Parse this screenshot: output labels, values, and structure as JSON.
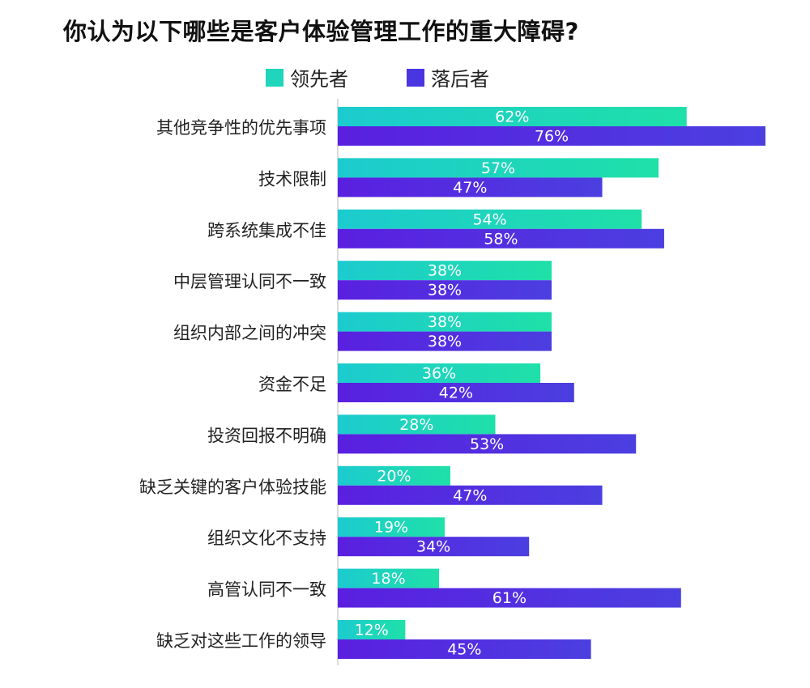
{
  "chart_data": {
    "type": "bar",
    "orientation": "horizontal",
    "title": "你认为以下哪些是客户体验管理工作的重大障碍?",
    "categories": [
      "其他竞争性的优先事项",
      "技术限制",
      "跨系统集成不佳",
      "中层管理认同不一致",
      "组织内部之间的冲突",
      "资金不足",
      "投资回报不明确",
      "缺乏关键的客户体验技能",
      "组织文化不支持",
      "高管认同不一致",
      "缺乏对这些工作的领导"
    ],
    "series": [
      {
        "name": "领先者",
        "values": [
          62,
          57,
          54,
          38,
          38,
          36,
          28,
          20,
          19,
          18,
          12
        ],
        "color": "#1fe0a8",
        "color_start": "#1ccbcf"
      },
      {
        "name": "落后者",
        "values": [
          76,
          47,
          58,
          38,
          38,
          42,
          53,
          47,
          34,
          61,
          45
        ],
        "color": "#4b3fe0",
        "color_start": "#5a1fe0"
      }
    ],
    "value_suffix": "%",
    "xlim": [
      0,
      76
    ],
    "grid": false,
    "legend_position": "top"
  }
}
